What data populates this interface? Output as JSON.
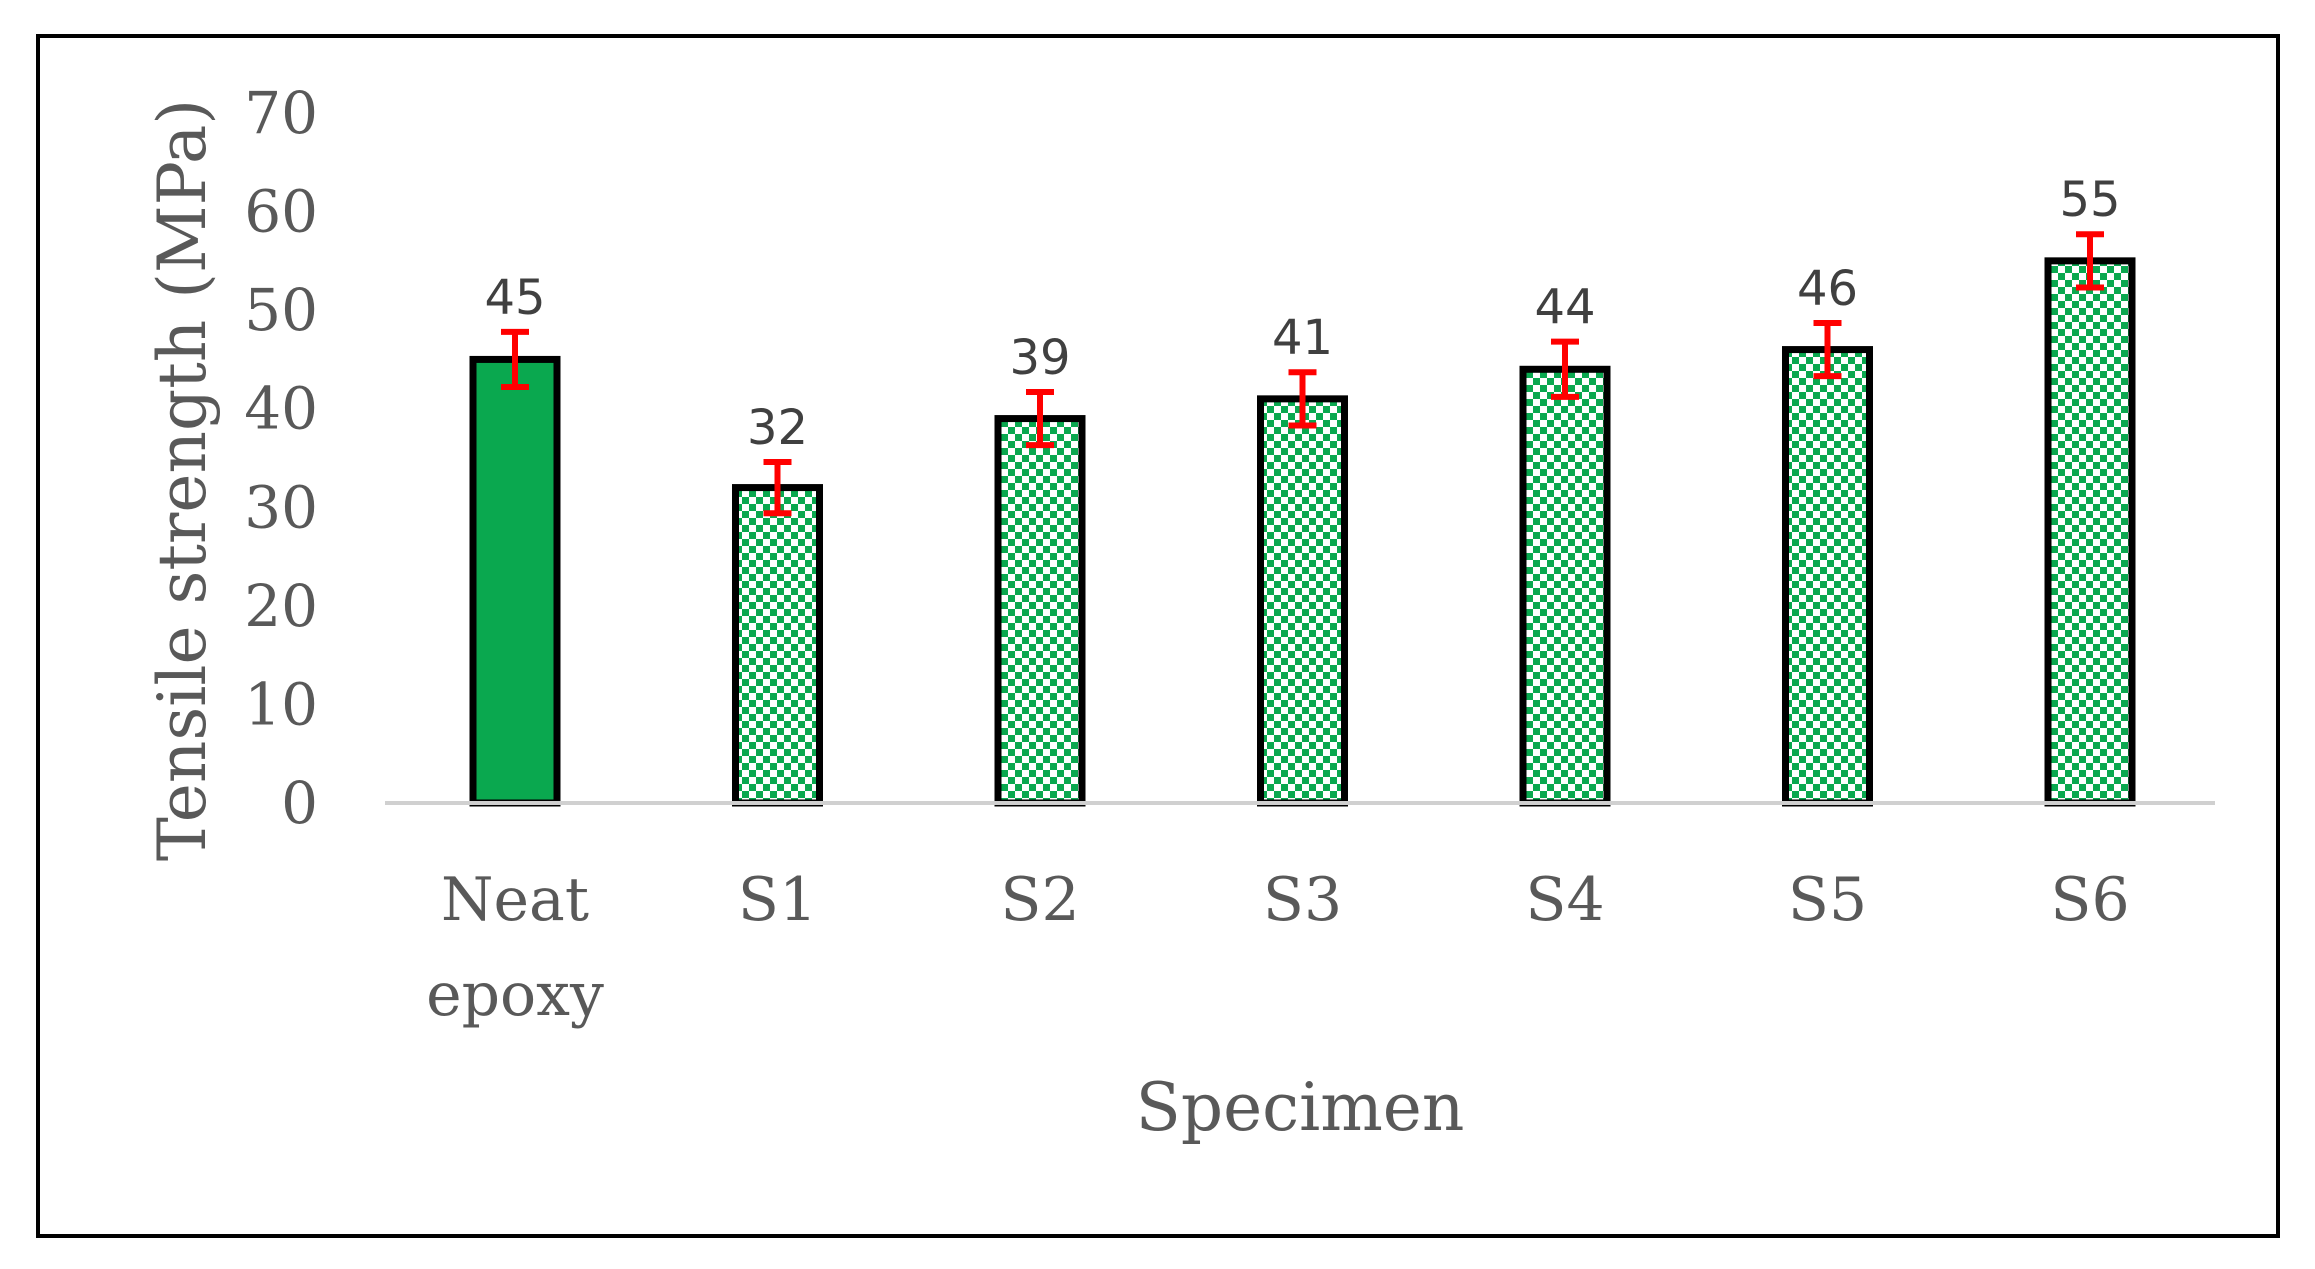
{
  "chart_data": {
    "type": "bar",
    "title": "",
    "xlabel": "Specimen",
    "ylabel": "Tensile strength (MPa)",
    "ylim": [
      0,
      70
    ],
    "yticks": [
      0,
      10,
      20,
      30,
      40,
      50,
      60,
      70
    ],
    "categories": [
      [
        "Neat",
        "epoxy"
      ],
      [
        "S1"
      ],
      [
        "S2"
      ],
      [
        "S3"
      ],
      [
        "S4"
      ],
      [
        "S5"
      ],
      [
        "S6"
      ]
    ],
    "values": [
      45,
      32,
      39,
      41,
      44,
      46,
      55
    ],
    "data_labels": [
      "45",
      "32",
      "39",
      "41",
      "44",
      "46",
      "55"
    ],
    "error": [
      2.8,
      2.6,
      2.7,
      2.7,
      2.8,
      2.7,
      2.7
    ],
    "grid": false,
    "legend": "none",
    "colors": {
      "bar_fill": "#0aa84f",
      "bar_edge": "#000000",
      "pattern_light": "#ffffff",
      "error_bar": "#ff0000",
      "axis_line": "#d0d0d0",
      "frame": "#000000"
    },
    "fill_patterns": [
      "solid",
      "checker",
      "checker",
      "checker",
      "checker",
      "checker",
      "checker"
    ]
  }
}
